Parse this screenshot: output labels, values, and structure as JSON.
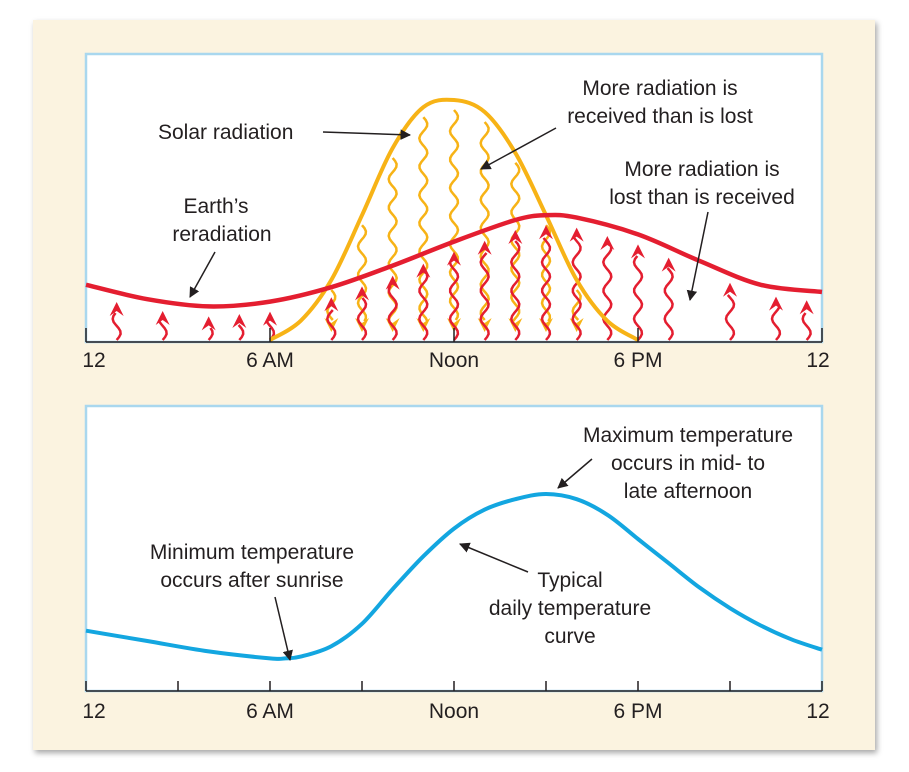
{
  "colors": {
    "panel_background": "#fbf3e0",
    "plot_background": "#ffffff",
    "plot_border": "#a9d7ee",
    "solar": "#f7b316",
    "earth": "#e41e30",
    "temperature": "#13a6e0",
    "text": "#231f20"
  },
  "top_panel": {
    "labels": {
      "solar_radiation": "Solar radiation",
      "earth_reradiation_1": "Earth’s",
      "earth_reradiation_2": "reradiation",
      "more_received_1": "More radiation is",
      "more_received_2": "received than is lost",
      "more_lost_1": "More radiation is",
      "more_lost_2": "lost than is received"
    },
    "axis_ticks": [
      "12",
      "6 AM",
      "Noon",
      "6 PM",
      "12"
    ]
  },
  "bottom_panel": {
    "labels": {
      "max_1": "Maximum temperature",
      "max_2": "occurs in mid- to",
      "max_3": "late afternoon",
      "min_1": "Minimum temperature",
      "min_2": "occurs after sunrise",
      "typical_1": "Typical",
      "typical_2": "daily temperature",
      "typical_3": "curve"
    },
    "axis_ticks": [
      "12",
      "6 AM",
      "Noon",
      "6 PM",
      "12"
    ]
  },
  "chart_data": [
    {
      "type": "line",
      "title": "",
      "x_unit": "hour of day",
      "xlim": [
        0,
        24
      ],
      "x_ticks": [
        0,
        6,
        12,
        18,
        24
      ],
      "x_tick_labels": [
        "12",
        "6 AM",
        "Noon",
        "6 PM",
        "12"
      ],
      "y_unit": "relative radiation intensity",
      "ylim": [
        0,
        1
      ],
      "series": [
        {
          "name": "Solar radiation",
          "x": [
            6,
            7,
            8,
            9,
            10,
            11,
            12,
            13,
            14,
            15,
            16,
            17,
            18
          ],
          "y": [
            0,
            0.08,
            0.25,
            0.52,
            0.8,
            0.97,
            1.0,
            0.95,
            0.78,
            0.52,
            0.25,
            0.08,
            0
          ]
        },
        {
          "name": "Earth’s reradiation",
          "x": [
            0,
            2,
            4,
            6,
            8,
            10,
            12,
            14,
            15,
            16,
            18,
            20,
            22,
            24
          ],
          "y": [
            0.23,
            0.17,
            0.14,
            0.16,
            0.22,
            0.31,
            0.41,
            0.5,
            0.52,
            0.51,
            0.44,
            0.33,
            0.23,
            0.2
          ]
        }
      ],
      "arrows": {
        "solar_down_hours": [
          8,
          9,
          10,
          11,
          12,
          13,
          14,
          15,
          16
        ],
        "earth_up_hours": [
          1,
          2.5,
          4,
          5,
          6,
          8,
          9,
          10,
          11,
          12,
          13,
          14,
          15,
          16,
          17,
          18,
          19,
          21,
          22.5,
          23.5
        ]
      }
    },
    {
      "type": "line",
      "title": "",
      "x_unit": "hour of day",
      "xlim": [
        0,
        24
      ],
      "x_ticks": [
        0,
        3,
        6,
        9,
        12,
        15,
        18,
        21,
        24
      ],
      "x_tick_labels": [
        "12",
        "6 AM",
        "Noon",
        "6 PM",
        "12"
      ],
      "y_unit": "relative temperature",
      "ylim": [
        0,
        1
      ],
      "series": [
        {
          "name": "Typical daily temperature curve",
          "x": [
            0,
            2,
            4,
            6,
            6.5,
            7,
            8,
            9,
            10,
            11,
            12,
            13,
            14,
            15,
            16,
            17,
            18,
            19,
            20,
            21,
            22,
            23,
            24
          ],
          "y": [
            0.21,
            0.15,
            0.09,
            0.05,
            0.05,
            0.06,
            0.12,
            0.25,
            0.45,
            0.64,
            0.8,
            0.91,
            0.97,
            1.0,
            0.97,
            0.88,
            0.74,
            0.6,
            0.46,
            0.34,
            0.24,
            0.16,
            0.1
          ]
        }
      ]
    }
  ]
}
